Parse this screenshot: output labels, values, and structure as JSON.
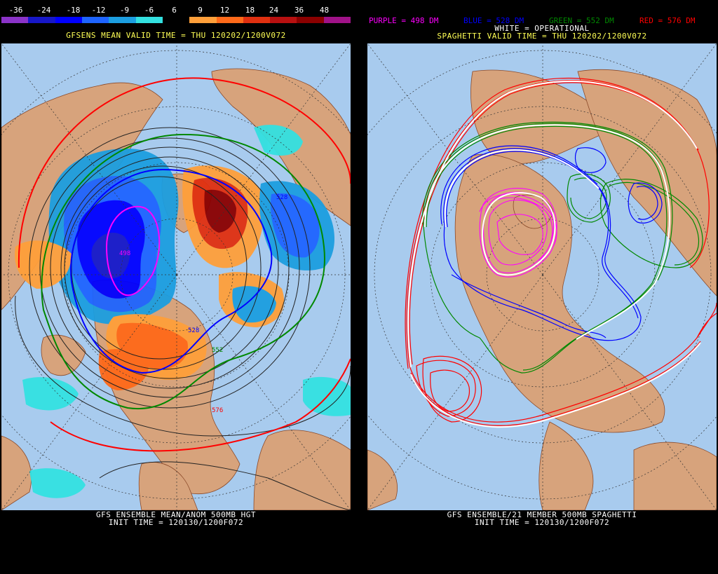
{
  "left_panel": {
    "legend": {
      "labels": [
        "-36",
        "-24",
        "-18",
        "-12",
        "-9",
        "-6",
        "6",
        "9",
        "12",
        "18",
        "24",
        "36",
        "48"
      ],
      "colors": [
        "#8b33c8",
        "#1717c8",
        "#0000ff",
        "#1e64ff",
        "#1c9ee0",
        "#33e0e0",
        "#000000",
        "#ff9f3a",
        "#ff6a1a",
        "#e03010",
        "#b81010",
        "#8b0000",
        "#a01288"
      ]
    },
    "valid_title": "GFSENS MEAN VALID TIME = THU 120202/1200V072",
    "footer_line1": "GFS ENSEMBLE MEAN/ANOM 500MB HGT",
    "footer_line2": "INIT TIME = 120130/1200F072",
    "contour_labels": [
      "498",
      "528",
      "528",
      "552",
      "576"
    ]
  },
  "right_panel": {
    "legend_items": [
      {
        "text": "PURPLE = 498 DM",
        "color": "#ff00ff"
      },
      {
        "text": "BLUE = 528 DM",
        "color": "#0000ff"
      },
      {
        "text": "GREEN = 552 DM",
        "color": "#008800"
      },
      {
        "text": "RED = 576 DM",
        "color": "#ff0000"
      }
    ],
    "legend_white": "WHITE = OPERATIONAL",
    "valid_title": "SPAGHETTI VALID TIME = THU 120202/1200V072",
    "footer_line1": "GFS ENSEMBLE/21 MEMBER 500MB SPAGHETTI",
    "footer_line2": "INIT TIME = 120130/1200F072"
  },
  "colors": {
    "ocean": "#a8cbee",
    "land": "#d7a37c",
    "border": "#8b4a2a",
    "grid": "#333333"
  }
}
